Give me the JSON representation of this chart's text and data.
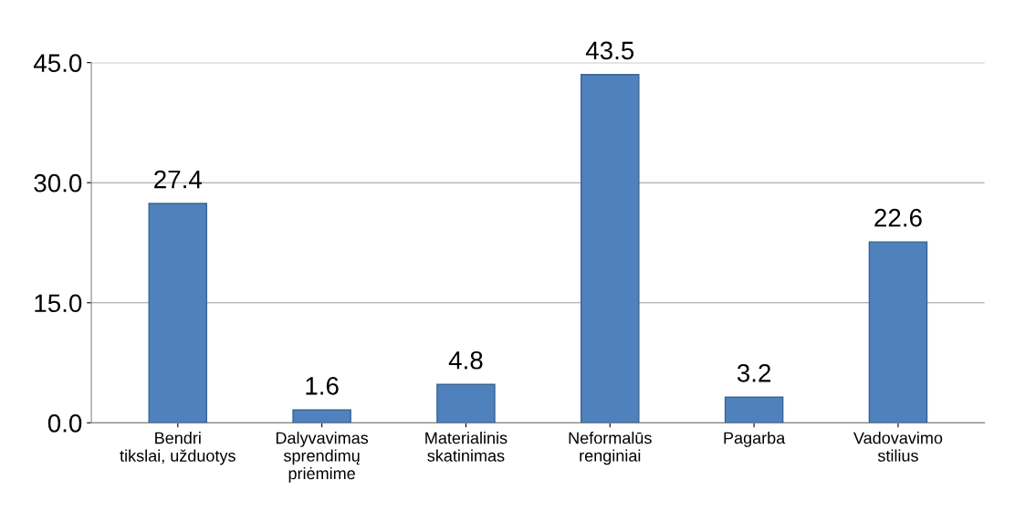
{
  "chart_data": {
    "type": "bar",
    "categories": [
      "Bendri\ntikslai, užduotys",
      "Dalyvavimas\nsprendimų\npriėmime",
      "Materialinis\nskatinimas",
      "Neformalūs\nrenginiai",
      "Pagarba",
      "Vadovavimo\nstilius"
    ],
    "values": [
      27.4,
      1.6,
      4.8,
      43.5,
      3.2,
      22.6
    ],
    "color": "#4f81bd",
    "ylim": [
      0,
      45
    ],
    "yticks": [
      {
        "value": 0,
        "label": "0.0"
      },
      {
        "value": 15,
        "label": "15.0"
      },
      {
        "value": 30,
        "label": "30.0"
      },
      {
        "value": 45,
        "label": "45.0"
      }
    ],
    "grid": "y",
    "data_labels": true
  }
}
